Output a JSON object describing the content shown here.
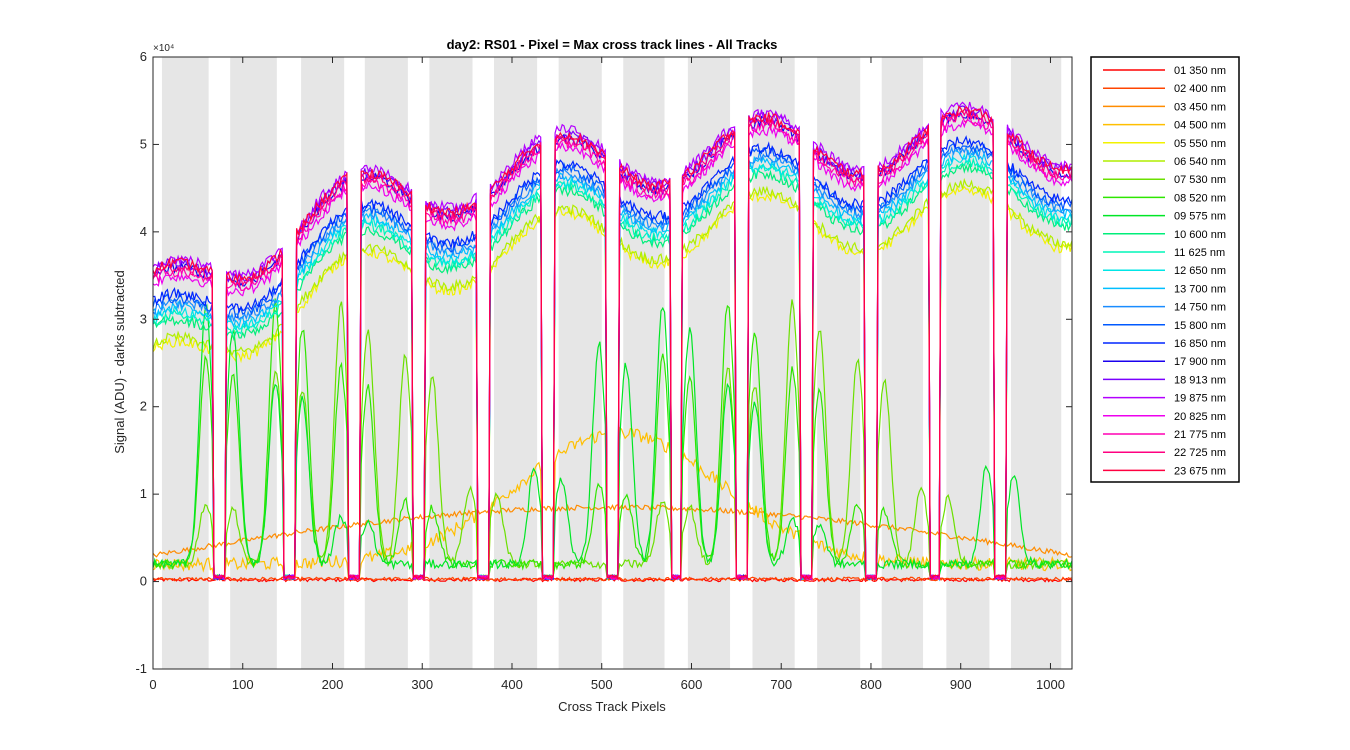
{
  "chart_data": {
    "type": "line",
    "title": "day2: RS01 - Pixel = Max cross track lines - All Tracks",
    "xlabel": "Cross Track Pixels",
    "ylabel": "Signal (ADU) - darks subtracted",
    "y_exponent_label": "×10⁴",
    "xlim": [
      0,
      1024
    ],
    "ylim": [
      -1,
      6
    ],
    "y_multiplier": 10000,
    "xticks": [
      0,
      100,
      200,
      300,
      400,
      500,
      600,
      700,
      800,
      900,
      1000
    ],
    "yticks": [
      -1,
      0,
      1,
      2,
      3,
      4,
      5,
      6
    ],
    "grid": false,
    "legend_position": "outside-right",
    "shaded_bands": [
      [
        10,
        62
      ],
      [
        86,
        138
      ],
      [
        165,
        213
      ],
      [
        236,
        284
      ],
      [
        308,
        356
      ],
      [
        380,
        428
      ],
      [
        452,
        500
      ],
      [
        524,
        570
      ],
      [
        596,
        643
      ],
      [
        668,
        715
      ],
      [
        740,
        788
      ],
      [
        812,
        858
      ],
      [
        884,
        932
      ],
      [
        956,
        1012
      ]
    ],
    "series": [
      {
        "name": "01 350 nm",
        "color": "#ff0000"
      },
      {
        "name": "02 400 nm",
        "color": "#ff4500"
      },
      {
        "name": "03 450 nm",
        "color": "#ff8c00"
      },
      {
        "name": "04 500 nm",
        "color": "#ffbf00"
      },
      {
        "name": "05 550 nm",
        "color": "#f2f200"
      },
      {
        "name": "06 540 nm",
        "color": "#b0ee00"
      },
      {
        "name": "07 530 nm",
        "color": "#6be000"
      },
      {
        "name": "08 520 nm",
        "color": "#2ee600"
      },
      {
        "name": "09 575 nm",
        "color": "#00e626"
      },
      {
        "name": "10 600 nm",
        "color": "#00ee7a"
      },
      {
        "name": "11 625 nm",
        "color": "#00f5b8"
      },
      {
        "name": "12 650 nm",
        "color": "#00e6e6"
      },
      {
        "name": "13 700 nm",
        "color": "#00bfff"
      },
      {
        "name": "14 750 nm",
        "color": "#1a8cff"
      },
      {
        "name": "15 800 nm",
        "color": "#0059ff"
      },
      {
        "name": "16 850 nm",
        "color": "#0026ff"
      },
      {
        "name": "17 900 nm",
        "color": "#1a00ee"
      },
      {
        "name": "18 913 nm",
        "color": "#7a00ff"
      },
      {
        "name": "19 875 nm",
        "color": "#b300ff"
      },
      {
        "name": "20 825 nm",
        "color": "#ee00ee"
      },
      {
        "name": "21 775 nm",
        "color": "#ff00b3"
      },
      {
        "name": "22 725 nm",
        "color": "#ff0080"
      },
      {
        "name": "23 675 nm",
        "color": "#ff0040"
      }
    ]
  }
}
